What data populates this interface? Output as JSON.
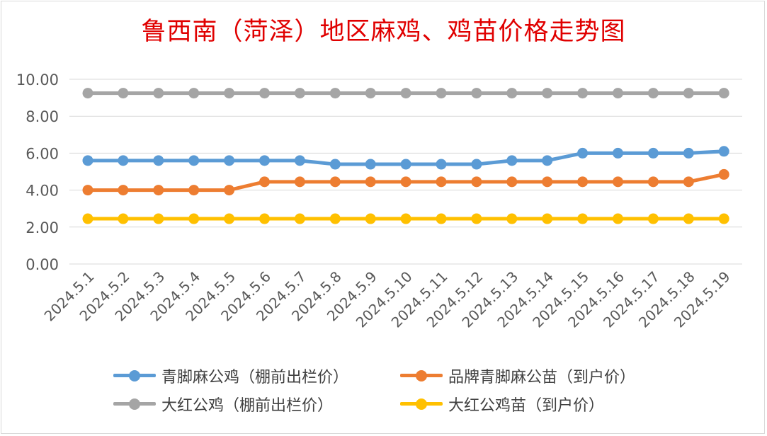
{
  "chart_data": {
    "type": "line",
    "title": "鲁西南（菏泽）地区麻鸡、鸡苗价格走势图",
    "categories": [
      "2024.5.1",
      "2024.5.2",
      "2024.5.3",
      "2024.5.4",
      "2024.5.5",
      "2024.5.6",
      "2024.5.7",
      "2024.5.8",
      "2024.5.9",
      "2024.5.10",
      "2024.5.11",
      "2024.5.12",
      "2024.5.13",
      "2024.5.14",
      "2024.5.15",
      "2024.5.16",
      "2024.5.17",
      "2024.5.18",
      "2024.5.19"
    ],
    "ylim": [
      0,
      10
    ],
    "yticks": [
      "0.00",
      "2.00",
      "4.00",
      "6.00",
      "8.00",
      "10.00"
    ],
    "grid": true,
    "legend_position": "bottom",
    "series": [
      {
        "name": "青脚麻公鸡（棚前出栏价）",
        "color": "#5b9bd5",
        "values": [
          5.6,
          5.6,
          5.6,
          5.6,
          5.6,
          5.6,
          5.6,
          5.4,
          5.4,
          5.4,
          5.4,
          5.4,
          5.6,
          5.6,
          6.0,
          6.0,
          6.0,
          6.0,
          6.1
        ]
      },
      {
        "name": "品牌青脚麻公苗（到户价）",
        "color": "#ed7d31",
        "values": [
          4.0,
          4.0,
          4.0,
          4.0,
          4.0,
          4.45,
          4.45,
          4.45,
          4.45,
          4.45,
          4.45,
          4.45,
          4.45,
          4.45,
          4.45,
          4.45,
          4.45,
          4.45,
          4.85
        ]
      },
      {
        "name": "大红公鸡（棚前出栏价）",
        "color": "#a5a5a5",
        "values": [
          9.25,
          9.25,
          9.25,
          9.25,
          9.25,
          9.25,
          9.25,
          9.25,
          9.25,
          9.25,
          9.25,
          9.25,
          9.25,
          9.25,
          9.25,
          9.25,
          9.25,
          9.25,
          9.25
        ]
      },
      {
        "name": "大红公鸡苗（到户价）",
        "color": "#ffc000",
        "values": [
          2.45,
          2.45,
          2.45,
          2.45,
          2.45,
          2.45,
          2.45,
          2.45,
          2.45,
          2.45,
          2.45,
          2.45,
          2.45,
          2.45,
          2.45,
          2.45,
          2.45,
          2.45,
          2.45
        ]
      }
    ]
  }
}
